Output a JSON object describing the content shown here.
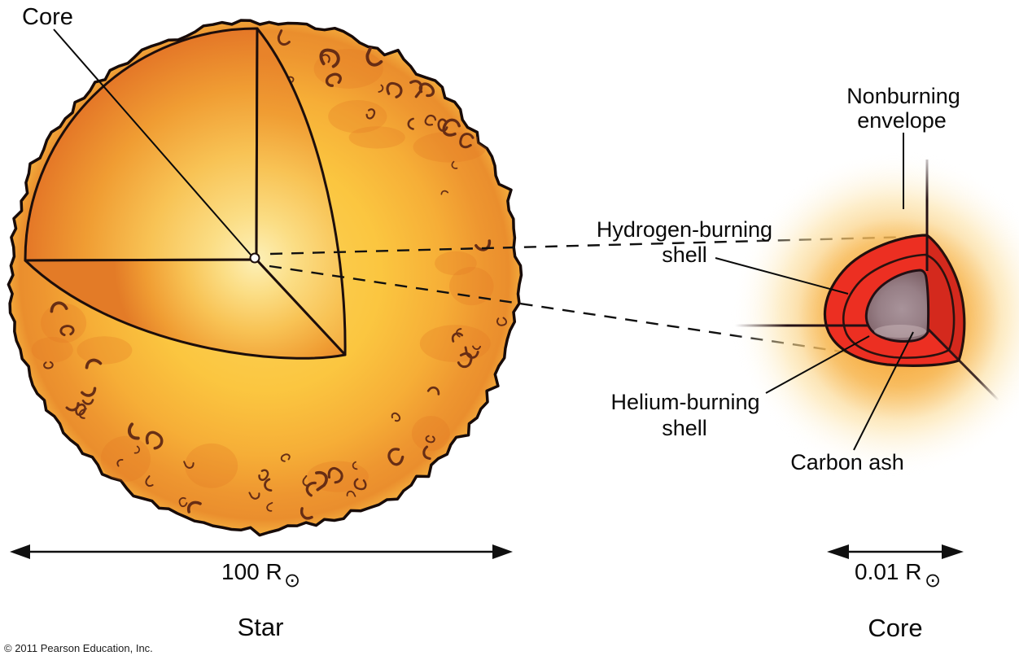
{
  "figure": {
    "star": {
      "core_callout": "Core",
      "caption": "Star",
      "scale": {
        "value": "100 R",
        "sun_symbol": "⊙"
      }
    },
    "core_view": {
      "labels": {
        "nonburning_1": "Nonburning",
        "nonburning_2": "envelope",
        "hydrogen_1": "Hydrogen-burning",
        "hydrogen_2": "shell",
        "helium_1": "Helium-burning",
        "helium_2": "shell",
        "carbon": "Carbon ash"
      },
      "caption": "Core",
      "scale": {
        "value": "0.01 R",
        "sun_symbol": "⊙"
      }
    },
    "copyright": "© 2011 Pearson Education, Inc.",
    "colors": {
      "shell_red": "#EC2F22",
      "carbon_core_gray": "#937C83",
      "envelope_glow": "#F5A93C",
      "star_surface_yellow": "#FBC440",
      "cut_face_light": "#FCE9A0",
      "cut_face_dark": "#E37326",
      "outline": "#1D0E0B"
    }
  }
}
